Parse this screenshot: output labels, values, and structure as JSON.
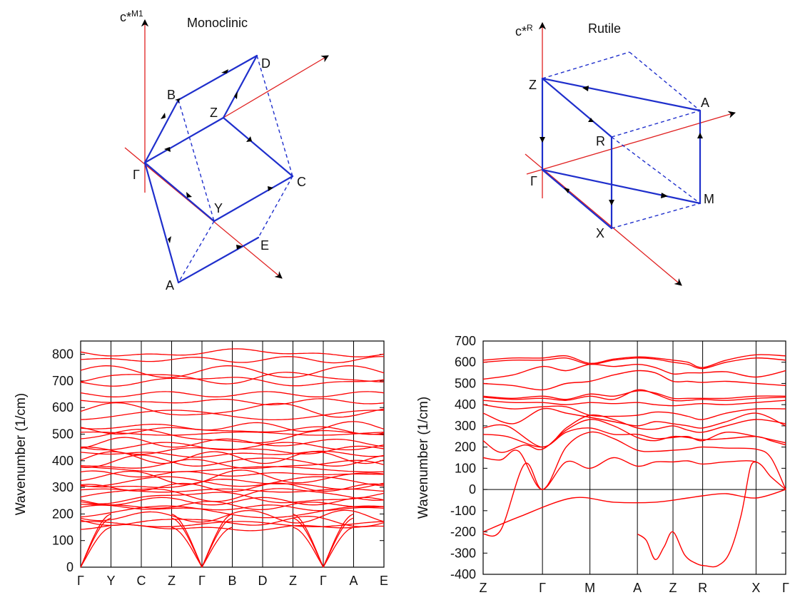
{
  "colors": {
    "band": "#ff0000",
    "path": "#1f2fcc",
    "axis": "#e02020",
    "frame": "#000000"
  },
  "brillouin": [
    {
      "title": "Monoclinic",
      "axis_label": "c*",
      "axis_label_sup": "M1",
      "points": [
        "B",
        "Z",
        "D",
        "Γ",
        "C",
        "Y",
        "E",
        "A"
      ]
    },
    {
      "title": "Rutile",
      "axis_label": "c*",
      "axis_label_sup": "R",
      "points": [
        "Z",
        "A",
        "R",
        "Γ",
        "M",
        "X"
      ]
    }
  ],
  "chart_data": [
    {
      "type": "line",
      "title": "",
      "ylabel": "Wavenumber (1/cm)",
      "ylim": [
        0,
        850
      ],
      "yticks": [
        0,
        100,
        200,
        300,
        400,
        500,
        600,
        700,
        800
      ],
      "x_labels": [
        "Γ",
        "Y",
        "C",
        "Z",
        "Γ",
        "B",
        "D",
        "Z",
        "Γ",
        "A",
        "E"
      ],
      "segments": 10,
      "grid": "vertical lines at high-symmetry points",
      "zero_line": true,
      "band_levels": [
        148,
        162,
        172,
        190,
        208,
        222,
        232,
        248,
        262,
        275,
        288,
        300,
        312,
        322,
        338,
        350,
        368,
        385,
        398,
        412,
        425,
        440,
        455,
        468,
        490,
        502,
        515,
        528,
        572,
        590,
        622,
        650,
        700,
        712,
        735,
        780,
        805
      ],
      "acoustic": {
        "gamma_positions": [
          0,
          4,
          8
        ],
        "values_at_neighbor": [
          150,
          185,
          200
        ]
      }
    },
    {
      "type": "line",
      "title": "",
      "ylabel": "Wavenumber (1/cm)",
      "ylim": [
        -400,
        700
      ],
      "yticks": [
        -400,
        -300,
        -200,
        -100,
        0,
        100,
        200,
        300,
        400,
        500,
        600,
        700
      ],
      "x_labels": [
        "Z",
        "Γ",
        "M",
        "A",
        "Z",
        "R",
        "X",
        "Γ"
      ],
      "x_positions": [
        0,
        1,
        1.8,
        2.6,
        3.2,
        3.7,
        4.6,
        5.1
      ],
      "grid": "vertical lines at high-symmetry points",
      "zero_line": true,
      "bands": [
        {
          "name": "",
          "x": [
            0,
            0.3,
            0.7,
            1,
            1.4,
            1.8,
            2.2,
            2.6,
            2.9,
            3.2,
            3.45,
            3.7,
            4.1,
            4.6,
            4.85,
            5.1
          ],
          "y": [
            -210,
            -190,
            120,
            0,
            130,
            100,
            150,
            110,
            130,
            130,
            135,
            120,
            130,
            130,
            60,
            0
          ]
        },
        {
          "name": "",
          "x": [
            0,
            0.3,
            0.6,
            1,
            1.4,
            1.8,
            2.2,
            2.6,
            2.9,
            3.2,
            3.45,
            3.7,
            4.1,
            4.6,
            4.85,
            5.1
          ],
          "y": [
            150,
            140,
            180,
            0,
            200,
            270,
            240,
            185,
            180,
            185,
            190,
            200,
            195,
            190,
            150,
            0
          ]
        },
        {
          "name": "",
          "x": [
            0,
            0.3,
            0.7,
            1,
            1.4,
            1.8,
            2.2,
            2.6,
            2.9,
            3.2,
            3.45,
            3.7,
            4.1,
            4.6,
            4.85,
            5.1
          ],
          "y": [
            230,
            175,
            210,
            190,
            280,
            330,
            300,
            245,
            230,
            250,
            245,
            235,
            240,
            250,
            230,
            210
          ]
        },
        {
          "name": "",
          "x": [
            0,
            0.4,
            1,
            1.4,
            1.8,
            2.2,
            2.6,
            2.9,
            3.2,
            3.45,
            3.7,
            4.1,
            4.6,
            5.1
          ],
          "y": [
            260,
            250,
            200,
            270,
            290,
            260,
            260,
            240,
            245,
            250,
            230,
            270,
            250,
            220
          ]
        },
        {
          "name": "",
          "x": [
            0,
            0.4,
            1,
            1.4,
            1.8,
            2.2,
            2.6,
            2.9,
            3.2,
            3.45,
            3.7,
            4.1,
            4.6,
            5.1
          ],
          "y": [
            290,
            300,
            200,
            290,
            350,
            330,
            290,
            285,
            300,
            280,
            270,
            300,
            330,
            310
          ]
        },
        {
          "name": "",
          "x": [
            0,
            0.5,
            1,
            1.4,
            1.8,
            2.2,
            2.6,
            2.9,
            3.2,
            3.45,
            3.7,
            4.1,
            4.6,
            5.1
          ],
          "y": [
            360,
            310,
            380,
            360,
            340,
            320,
            300,
            320,
            310,
            300,
            290,
            320,
            360,
            300
          ]
        },
        {
          "name": "",
          "x": [
            0,
            0.5,
            1,
            1.4,
            1.8,
            2.2,
            2.6,
            2.9,
            3.2,
            3.45,
            3.7,
            4.1,
            4.6,
            5.1
          ],
          "y": [
            400,
            380,
            390,
            390,
            350,
            345,
            350,
            365,
            360,
            345,
            330,
            360,
            380,
            380
          ]
        },
        {
          "name": "",
          "x": [
            0,
            0.5,
            1,
            1.4,
            1.8,
            2.2,
            2.6,
            2.9,
            3.2,
            3.45,
            3.7,
            4.1,
            4.6,
            5.1
          ],
          "y": [
            420,
            410,
            410,
            400,
            410,
            405,
            410,
            400,
            395,
            400,
            405,
            400,
            410,
            420
          ]
        },
        {
          "name": "",
          "x": [
            0,
            0.5,
            1,
            1.4,
            1.8,
            2.2,
            2.6,
            2.9,
            3.2,
            3.45,
            3.7,
            4.1,
            4.6,
            5.1
          ],
          "y": [
            435,
            425,
            430,
            420,
            440,
            425,
            470,
            450,
            420,
            420,
            425,
            420,
            430,
            435
          ]
        },
        {
          "name": "",
          "x": [
            0,
            0.5,
            1,
            1.4,
            1.8,
            2.2,
            2.6,
            2.9,
            3.2,
            3.45,
            3.7,
            4.1,
            4.6,
            5.1
          ],
          "y": [
            440,
            430,
            440,
            425,
            450,
            440,
            465,
            455,
            430,
            430,
            430,
            430,
            440,
            440
          ]
        },
        {
          "name": "",
          "x": [
            0,
            0.5,
            1,
            1.4,
            1.8,
            2.2,
            2.6,
            2.9,
            3.2,
            3.45,
            3.7,
            4.1,
            4.6,
            5.1
          ],
          "y": [
            500,
            490,
            470,
            500,
            510,
            540,
            560,
            550,
            510,
            510,
            505,
            510,
            500,
            490
          ]
        },
        {
          "name": "",
          "x": [
            0,
            0.5,
            1,
            1.4,
            1.8,
            2.2,
            2.6,
            2.9,
            3.2,
            3.45,
            3.7,
            4.1,
            4.6,
            5.1
          ],
          "y": [
            520,
            540,
            580,
            560,
            590,
            580,
            590,
            575,
            545,
            550,
            550,
            555,
            530,
            560
          ]
        },
        {
          "name": "",
          "x": [
            0,
            0.5,
            1,
            1.4,
            1.8,
            2.2,
            2.6,
            2.9,
            3.2,
            3.45,
            3.7,
            4.1,
            4.6,
            5.1
          ],
          "y": [
            600,
            610,
            610,
            620,
            590,
            610,
            620,
            615,
            600,
            590,
            570,
            600,
            620,
            610
          ]
        },
        {
          "name": "",
          "x": [
            0,
            0.5,
            1,
            1.4,
            1.8,
            2.2,
            2.6,
            2.9,
            3.2,
            3.45,
            3.7,
            4.1,
            4.6,
            5.1
          ],
          "y": [
            610,
            620,
            620,
            630,
            595,
            615,
            625,
            620,
            610,
            600,
            575,
            610,
            635,
            630
          ]
        },
        {
          "name": "",
          "x": [
            0,
            0.6,
            1.5,
            2.2,
            2.9,
            3.45,
            3.7,
            4.1,
            4.6,
            5.1
          ],
          "y": [
            -200,
            -130,
            -40,
            -60,
            -60,
            -40,
            -30,
            -20,
            -40,
            0
          ]
        },
        {
          "name": "",
          "x": [
            2.6,
            2.75,
            2.9,
            3.05,
            3.2,
            3.4,
            3.6,
            3.75,
            3.95,
            4.15,
            4.35,
            4.5,
            4.6
          ],
          "y": [
            -210,
            -240,
            -330,
            -270,
            -200,
            -310,
            -350,
            -360,
            -360,
            -300,
            -120,
            100,
            130
          ]
        }
      ]
    }
  ]
}
